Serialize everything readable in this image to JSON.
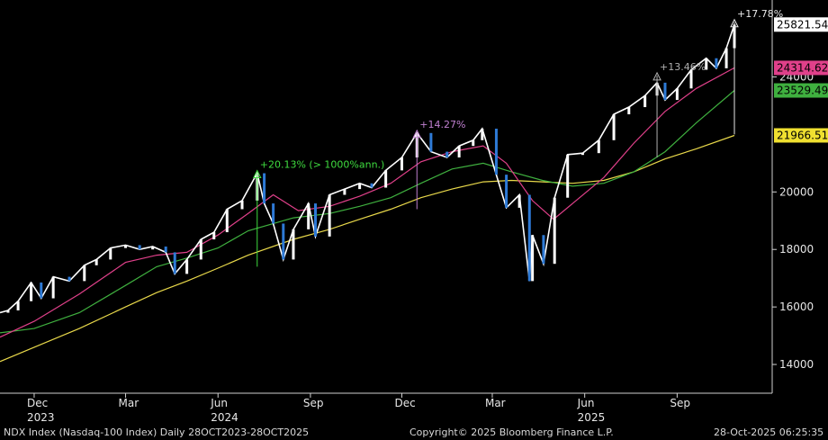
{
  "footer": {
    "left": "NDX Index (Nasdaq-100 Index) Daily 28OCT2023-28OCT2025",
    "center": "Copyright© 2025 Bloomberg Finance L.P.",
    "right": "28-Oct-2025 06:25:35"
  },
  "chart_data": {
    "type": "line",
    "title": "",
    "xlabel": "",
    "ylabel": "",
    "x_range": [
      "2023-10-28",
      "2025-10-28"
    ],
    "ylim": [
      13000,
      26300
    ],
    "y_ticks": [
      14000,
      16000,
      18000,
      20000,
      24000
    ],
    "x_ticks": [
      {
        "date": "2023-12-01",
        "label": "Dec"
      },
      {
        "date": "2024-03-01",
        "label": "Mar"
      },
      {
        "date": "2024-06-01",
        "label": "Jun"
      },
      {
        "date": "2024-09-01",
        "label": "Sep"
      },
      {
        "date": "2024-12-01",
        "label": "Dec"
      },
      {
        "date": "2025-03-01",
        "label": "Mar"
      },
      {
        "date": "2025-06-01",
        "label": "Jun"
      },
      {
        "date": "2025-09-01",
        "label": "Sep"
      }
    ],
    "year_labels": [
      {
        "date": "2023-12-01",
        "label": "2023"
      },
      {
        "date": "2024-06-01",
        "label": "2024"
      },
      {
        "date": "2025-06-01",
        "label": "2025"
      }
    ],
    "grid": false,
    "series": [
      {
        "kind": "price",
        "color": "#ffffff",
        "points": [
          [
            "2023-10-28",
            15800
          ],
          [
            "2023-11-05",
            15880
          ],
          [
            "2023-11-15",
            16200
          ],
          [
            "2023-11-28",
            16850
          ],
          [
            "2023-12-08",
            16300
          ],
          [
            "2023-12-20",
            17050
          ],
          [
            "2024-01-05",
            16900
          ],
          [
            "2024-01-20",
            17450
          ],
          [
            "2024-02-01",
            17650
          ],
          [
            "2024-02-15",
            18050
          ],
          [
            "2024-03-01",
            18150
          ],
          [
            "2024-03-15",
            18000
          ],
          [
            "2024-03-28",
            18100
          ],
          [
            "2024-04-10",
            17900
          ],
          [
            "2024-04-19",
            17150
          ],
          [
            "2024-05-01",
            17650
          ],
          [
            "2024-05-15",
            18350
          ],
          [
            "2024-05-28",
            18600
          ],
          [
            "2024-06-10",
            19400
          ],
          [
            "2024-06-25",
            19700
          ],
          [
            "2024-07-10",
            20650
          ],
          [
            "2024-07-17",
            19600
          ],
          [
            "2024-07-26",
            18900
          ],
          [
            "2024-08-05",
            17650
          ],
          [
            "2024-08-15",
            18700
          ],
          [
            "2024-08-30",
            19600
          ],
          [
            "2024-09-06",
            18450
          ],
          [
            "2024-09-20",
            19900
          ],
          [
            "2024-10-05",
            20100
          ],
          [
            "2024-10-20",
            20300
          ],
          [
            "2024-11-01",
            20150
          ],
          [
            "2024-11-15",
            20750
          ],
          [
            "2024-12-01",
            21200
          ],
          [
            "2024-12-16",
            22050
          ],
          [
            "2024-12-30",
            21400
          ],
          [
            "2025-01-15",
            21200
          ],
          [
            "2025-01-27",
            21600
          ],
          [
            "2025-02-10",
            21800
          ],
          [
            "2025-02-19",
            22200
          ],
          [
            "2025-03-05",
            20600
          ],
          [
            "2025-03-15",
            19450
          ],
          [
            "2025-03-28",
            19900
          ],
          [
            "2025-04-07",
            16900
          ],
          [
            "2025-04-10",
            18500
          ],
          [
            "2025-04-21",
            17500
          ],
          [
            "2025-05-02",
            19800
          ],
          [
            "2025-05-15",
            21300
          ],
          [
            "2025-05-30",
            21350
          ],
          [
            "2025-06-15",
            21800
          ],
          [
            "2025-06-30",
            22700
          ],
          [
            "2025-07-15",
            22950
          ],
          [
            "2025-07-31",
            23350
          ],
          [
            "2025-08-12",
            23800
          ],
          [
            "2025-08-20",
            23200
          ],
          [
            "2025-09-01",
            23600
          ],
          [
            "2025-09-15",
            24250
          ],
          [
            "2025-09-30",
            24650
          ],
          [
            "2025-10-10",
            24300
          ],
          [
            "2025-10-20",
            25000
          ],
          [
            "2025-10-28",
            25821.54
          ]
        ]
      },
      {
        "kind": "ma-fast",
        "color": "#e0408a",
        "points": [
          [
            "2023-10-28",
            14950
          ],
          [
            "2023-12-01",
            15500
          ],
          [
            "2024-01-15",
            16450
          ],
          [
            "2024-03-01",
            17550
          ],
          [
            "2024-04-01",
            17800
          ],
          [
            "2024-05-01",
            17900
          ],
          [
            "2024-06-01",
            18500
          ],
          [
            "2024-07-01",
            19250
          ],
          [
            "2024-07-26",
            19900
          ],
          [
            "2024-08-20",
            19350
          ],
          [
            "2024-09-20",
            19500
          ],
          [
            "2024-10-20",
            19850
          ],
          [
            "2024-11-20",
            20300
          ],
          [
            "2024-12-20",
            21050
          ],
          [
            "2025-01-20",
            21400
          ],
          [
            "2025-02-20",
            21600
          ],
          [
            "2025-03-15",
            21000
          ],
          [
            "2025-04-10",
            19700
          ],
          [
            "2025-05-01",
            19050
          ],
          [
            "2025-05-20",
            19600
          ],
          [
            "2025-06-20",
            20500
          ],
          [
            "2025-07-20",
            21700
          ],
          [
            "2025-08-20",
            22800
          ],
          [
            "2025-09-20",
            23600
          ],
          [
            "2025-10-28",
            24314.62
          ]
        ]
      },
      {
        "kind": "ma-mid",
        "color": "#3fb03f",
        "points": [
          [
            "2023-10-28",
            15100
          ],
          [
            "2023-12-01",
            15250
          ],
          [
            "2024-01-15",
            15800
          ],
          [
            "2024-03-01",
            16750
          ],
          [
            "2024-04-01",
            17400
          ],
          [
            "2024-05-01",
            17700
          ],
          [
            "2024-06-01",
            18050
          ],
          [
            "2024-07-01",
            18650
          ],
          [
            "2024-08-15",
            19100
          ],
          [
            "2024-09-20",
            19250
          ],
          [
            "2024-10-20",
            19500
          ],
          [
            "2024-11-20",
            19800
          ],
          [
            "2024-12-20",
            20300
          ],
          [
            "2025-01-20",
            20800
          ],
          [
            "2025-02-20",
            21000
          ],
          [
            "2025-03-20",
            20700
          ],
          [
            "2025-04-20",
            20400
          ],
          [
            "2025-05-20",
            20200
          ],
          [
            "2025-06-20",
            20300
          ],
          [
            "2025-07-20",
            20700
          ],
          [
            "2025-08-20",
            21400
          ],
          [
            "2025-09-20",
            22400
          ],
          [
            "2025-10-28",
            23529.49
          ]
        ]
      },
      {
        "kind": "ma-slow",
        "color": "#e8d84a",
        "points": [
          [
            "2023-10-28",
            14100
          ],
          [
            "2023-12-01",
            14600
          ],
          [
            "2024-01-15",
            15250
          ],
          [
            "2024-03-01",
            16000
          ],
          [
            "2024-04-01",
            16500
          ],
          [
            "2024-05-01",
            16900
          ],
          [
            "2024-06-01",
            17350
          ],
          [
            "2024-07-01",
            17800
          ],
          [
            "2024-08-15",
            18350
          ],
          [
            "2024-09-20",
            18700
          ],
          [
            "2024-10-20",
            19050
          ],
          [
            "2024-11-20",
            19400
          ],
          [
            "2024-12-20",
            19800
          ],
          [
            "2025-01-20",
            20100
          ],
          [
            "2025-02-20",
            20350
          ],
          [
            "2025-03-20",
            20400
          ],
          [
            "2025-04-20",
            20350
          ],
          [
            "2025-05-20",
            20300
          ],
          [
            "2025-06-20",
            20400
          ],
          [
            "2025-07-20",
            20700
          ],
          [
            "2025-08-20",
            21150
          ],
          [
            "2025-09-20",
            21500
          ],
          [
            "2025-10-28",
            21966.51
          ]
        ]
      }
    ],
    "last_value_labels": [
      {
        "value": "25821.54",
        "bg": "#ffffff",
        "fg": "#000000",
        "y": 25821.54
      },
      {
        "value": "24314.62",
        "bg": "#e0408a",
        "fg": "#000000",
        "y": 24314.62
      },
      {
        "value": "23529.49",
        "bg": "#3fb03f",
        "fg": "#000000",
        "y": 23529.49
      },
      {
        "value": "21966.51",
        "bg": "#f0e030",
        "fg": "#000000",
        "y": 21966.51
      }
    ],
    "annotations": [
      {
        "label": "+20.13% (> 1000%ann.)",
        "color": "#3fdc3f",
        "date": "2024-07-10",
        "low": 17400,
        "high": 20650
      },
      {
        "label": "+14.27%",
        "color": "#c080d0",
        "date": "2024-12-16",
        "low": 19400,
        "high": 22050
      },
      {
        "label": "+13.46%",
        "color": "#b0b0b0",
        "date": "2025-08-12",
        "low": 21200,
        "high": 24050
      },
      {
        "label": "+17.78%",
        "color": "#e8e8e8",
        "date": "2025-10-28",
        "low": 22000,
        "high": 25900
      }
    ]
  }
}
